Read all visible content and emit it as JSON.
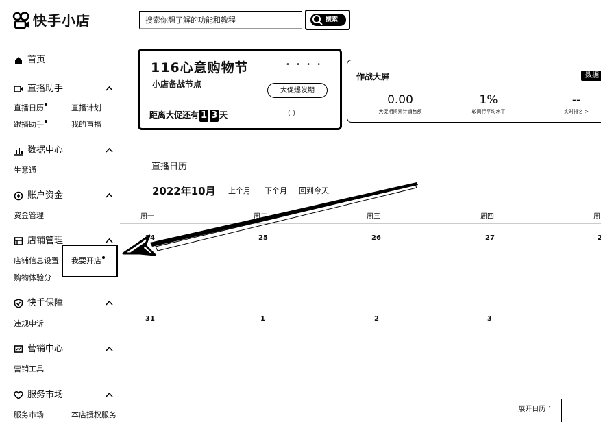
{
  "header": {
    "logo_text": "快手小店",
    "search_placeholder": "搜索你想了解的功能和教程",
    "search_button_label": "搜索"
  },
  "sidebar": {
    "home": {
      "label": "首页",
      "icon": "home-icon"
    },
    "groups": [
      {
        "label": "直播助手",
        "icon": "camera-icon",
        "items": [
          "直播日历",
          "直播计划",
          "跟播助手",
          "我的直播"
        ]
      },
      {
        "label": "数据中心",
        "icon": "bar-chart-icon",
        "items": [
          "生意通"
        ]
      },
      {
        "label": "账户资金",
        "icon": "wallet-icon",
        "items": [
          "资金管理"
        ]
      },
      {
        "label": "店铺管理",
        "icon": "store-icon",
        "items": [
          "店铺信息设置",
          "我要开店",
          "购物体验分"
        ]
      },
      {
        "label": "快手保障",
        "icon": "shield-icon",
        "items": [
          "违规申诉"
        ]
      },
      {
        "label": "营销中心",
        "icon": "marketing-icon",
        "items": [
          "营销工具"
        ]
      },
      {
        "label": "服务市场",
        "icon": "heart-icon",
        "items": [
          "服务市场",
          "本店授权服务"
        ]
      }
    ]
  },
  "promo": {
    "title": "116心意购物节",
    "subtitle": "小店备战节点",
    "dots": "• • • •",
    "button_label": "大促爆发期",
    "countdown_prefix": "距离大促还有",
    "countdown_d1": "1",
    "countdown_d2": "3",
    "countdown_suffix": "天",
    "mark": "( )"
  },
  "warroom": {
    "title": "作战大屏",
    "tag": "数据",
    "metrics": [
      {
        "value": "0.00",
        "label": "大促期间累计销售额"
      },
      {
        "value": "1%",
        "label": "较同行平均水平"
      },
      {
        "value": "--",
        "label": "实时排名 >"
      }
    ]
  },
  "calendar": {
    "heading": "直播日历",
    "month": "2022年10月",
    "prev_label": "上个月",
    "next_label": "下个月",
    "today_label": "回到今天",
    "weekdays": [
      "周一",
      "周二",
      "周三",
      "周四",
      "周"
    ],
    "week1": [
      "24",
      "25",
      "26",
      "27",
      "2"
    ],
    "week2": [
      "31",
      "1",
      "2",
      "3",
      ""
    ],
    "expand_label": "展开日历"
  }
}
